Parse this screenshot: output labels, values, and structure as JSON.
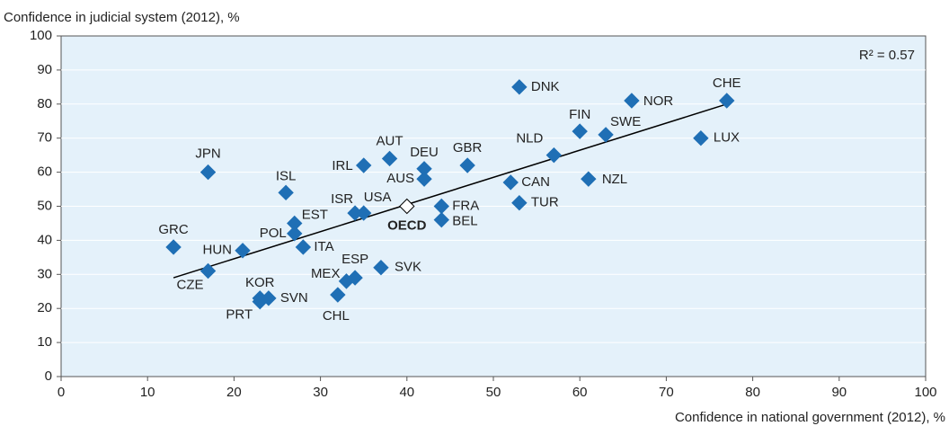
{
  "chart_data": {
    "type": "scatter",
    "ylabel": "Confidence in judicial system (2012), %",
    "xlabel": "Confidence in national government (2012), %",
    "annotation": "R² = 0.57",
    "xlim": [
      0,
      100
    ],
    "ylim": [
      0,
      100
    ],
    "xticks": [
      0,
      10,
      20,
      30,
      40,
      50,
      60,
      70,
      80,
      90,
      100
    ],
    "yticks": [
      0,
      10,
      20,
      30,
      40,
      50,
      60,
      70,
      80,
      90,
      100
    ],
    "grid": true,
    "series": [
      {
        "color": "#1f6fb5",
        "stroke": "#1f6fb5",
        "bold": false,
        "labels": [
          "GRC",
          "JPN",
          "CZE",
          "HUN",
          "ISL",
          "EST",
          "POL",
          "ITA",
          "KOR",
          "PRT",
          "SVN",
          "CHL",
          "MEX",
          "ESP",
          "SVK",
          "ISR",
          "USA",
          "IRL",
          "AUT",
          "DEU",
          "AUS",
          "FRA",
          "BEL",
          "GBR",
          "DNK",
          "CAN",
          "TUR",
          "NLD",
          "FIN",
          "SWE",
          "NZL",
          "NOR",
          "CHE",
          "LUX"
        ],
        "x": [
          13,
          17,
          17,
          21,
          26,
          27,
          27,
          28,
          23,
          23,
          24,
          32,
          33,
          34,
          37,
          34,
          35,
          35,
          38,
          42,
          42,
          44,
          44,
          47,
          53,
          52,
          53,
          57,
          60,
          63,
          61,
          66,
          77,
          74
        ],
        "values": [
          38,
          60,
          31,
          37,
          54,
          45,
          42,
          38,
          23,
          22,
          23,
          24,
          28,
          29,
          32,
          48,
          48,
          62,
          64,
          61,
          58,
          50,
          46,
          62,
          85,
          57,
          51,
          65,
          72,
          71,
          58,
          81,
          81,
          70
        ]
      },
      {
        "color": "#ffffff",
        "stroke": "#000000",
        "bold": true,
        "labels": [
          "OECD"
        ],
        "x": [
          40
        ],
        "values": [
          50
        ]
      }
    ],
    "trendline": {
      "color": "#000000",
      "x": [
        13,
        77
      ],
      "y": [
        29,
        80
      ]
    }
  }
}
